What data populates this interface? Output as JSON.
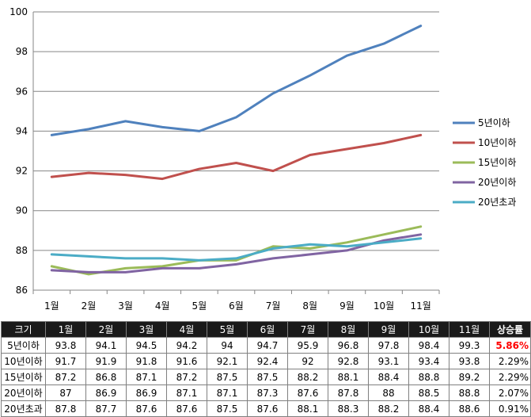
{
  "chart_data": {
    "type": "line",
    "categories": [
      "1월",
      "2월",
      "3월",
      "4월",
      "5월",
      "6월",
      "7월",
      "8월",
      "9월",
      "10월",
      "11월"
    ],
    "ylim": [
      86,
      100
    ],
    "yticks": [
      86,
      88,
      90,
      92,
      94,
      96,
      98,
      100
    ],
    "grid": true,
    "legend": "right",
    "series": [
      {
        "name": "5년이하",
        "color": "#4f81bd",
        "values": [
          93.8,
          94.1,
          94.5,
          94.2,
          94,
          94.7,
          95.9,
          96.8,
          97.8,
          98.4,
          99.3
        ]
      },
      {
        "name": "10년이하",
        "color": "#c0504d",
        "values": [
          91.7,
          91.9,
          91.8,
          91.6,
          92.1,
          92.4,
          92,
          92.8,
          93.1,
          93.4,
          93.8
        ]
      },
      {
        "name": "15년이하",
        "color": "#9bbb59",
        "values": [
          87.2,
          86.8,
          87.1,
          87.2,
          87.5,
          87.5,
          88.2,
          88.1,
          88.4,
          88.8,
          89.2
        ]
      },
      {
        "name": "20년이하",
        "color": "#8064a2",
        "values": [
          87,
          86.9,
          86.9,
          87.1,
          87.1,
          87.3,
          87.6,
          87.8,
          88,
          88.5,
          88.8
        ]
      },
      {
        "name": "20년초과",
        "color": "#4bacc6",
        "values": [
          87.8,
          87.7,
          87.6,
          87.6,
          87.5,
          87.6,
          88.1,
          88.3,
          88.2,
          88.4,
          88.6
        ]
      }
    ]
  },
  "table": {
    "corner_label": "크기",
    "rate_header": "상승률",
    "rows": [
      {
        "label": "5년이하",
        "values": [
          "93.8",
          "94.1",
          "94.5",
          "94.2",
          "94",
          "94.7",
          "95.9",
          "96.8",
          "97.8",
          "98.4",
          "99.3"
        ],
        "rate": "5.86%",
        "highlight": true
      },
      {
        "label": "10년이하",
        "values": [
          "91.7",
          "91.9",
          "91.8",
          "91.6",
          "92.1",
          "92.4",
          "92",
          "92.8",
          "93.1",
          "93.4",
          "93.8"
        ],
        "rate": "2.29%",
        "highlight": false
      },
      {
        "label": "15년이하",
        "values": [
          "87.2",
          "86.8",
          "87.1",
          "87.2",
          "87.5",
          "87.5",
          "88.2",
          "88.1",
          "88.4",
          "88.8",
          "89.2"
        ],
        "rate": "2.29%",
        "highlight": false
      },
      {
        "label": "20년이하",
        "values": [
          "87",
          "86.9",
          "86.9",
          "87.1",
          "87.1",
          "87.3",
          "87.6",
          "87.8",
          "88",
          "88.5",
          "88.8"
        ],
        "rate": "2.07%",
        "highlight": false
      },
      {
        "label": "20년초과",
        "values": [
          "87.8",
          "87.7",
          "87.6",
          "87.6",
          "87.5",
          "87.6",
          "88.1",
          "88.3",
          "88.2",
          "88.4",
          "88.6"
        ],
        "rate": "0.91%",
        "highlight": false
      }
    ]
  }
}
